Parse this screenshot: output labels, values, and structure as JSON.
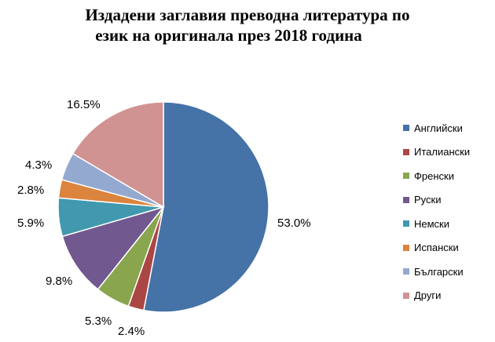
{
  "chart_data": {
    "type": "pie",
    "title": "Издадени заглавия преводна литература по език на оригинала през 2018 година",
    "title_lines": [
      "Издадени заглавия преводна литература по",
      "език на оригинала през 2018 година"
    ],
    "legend_position": "right",
    "slices": [
      {
        "label": "Английски",
        "value": 53.0,
        "display": "53.0%",
        "color": "#4572A7"
      },
      {
        "label": "Италиански",
        "value": 2.4,
        "display": "2.4%",
        "color": "#AA4643"
      },
      {
        "label": "Френски",
        "value": 5.3,
        "display": "5.3%",
        "color": "#89A54E"
      },
      {
        "label": "Руски",
        "value": 9.8,
        "display": "9.8%",
        "color": "#71588F"
      },
      {
        "label": "Немски",
        "value": 5.9,
        "display": "5.9%",
        "color": "#4198AF"
      },
      {
        "label": "Испански",
        "value": 2.8,
        "display": "2.8%",
        "color": "#DB843D"
      },
      {
        "label": "Български",
        "value": 4.3,
        "display": "4.3%",
        "color": "#93A9CF"
      },
      {
        "label": "Други",
        "value": 16.5,
        "display": "16.5%",
        "color": "#D19392"
      }
    ]
  }
}
